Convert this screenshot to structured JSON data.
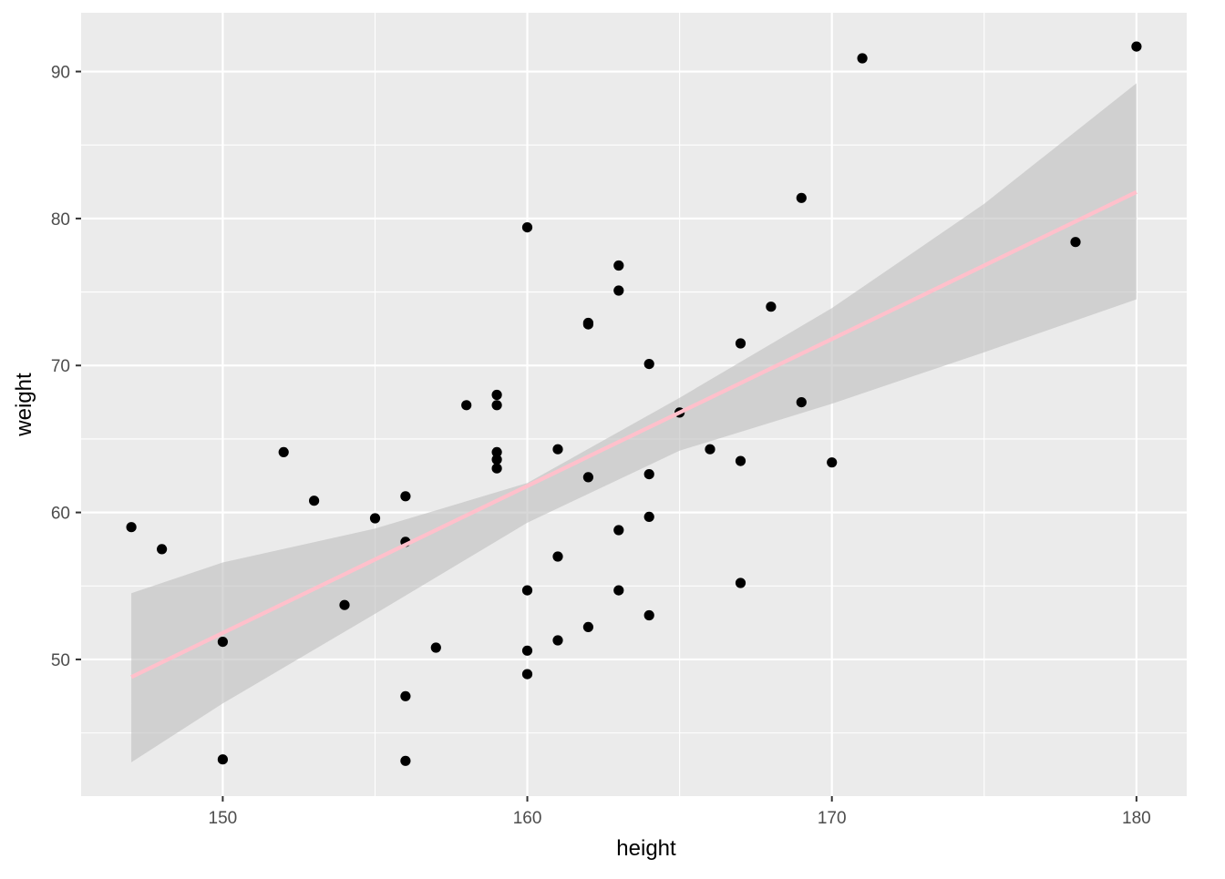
{
  "chart_data": {
    "type": "scatter",
    "xlabel": "height",
    "ylabel": "weight",
    "xlim": [
      145.35,
      181.65
    ],
    "ylim": [
      40.7,
      94.0
    ],
    "x_ticks": [
      150,
      160,
      170,
      180
    ],
    "y_ticks": [
      50,
      60,
      70,
      80,
      90
    ],
    "x_tick_labels": [
      "150",
      "160",
      "170",
      "180"
    ],
    "y_tick_labels": [
      "50",
      "60",
      "70",
      "80",
      "90"
    ],
    "grid": true,
    "legend": "none",
    "series": [
      {
        "points": [
          [
            147,
            59.0
          ],
          [
            148,
            57.5
          ],
          [
            150,
            51.2
          ],
          [
            150,
            43.2
          ],
          [
            152,
            64.1
          ],
          [
            153,
            60.8
          ],
          [
            154,
            53.7
          ],
          [
            155,
            59.6
          ],
          [
            156,
            61.1
          ],
          [
            156,
            58.0
          ],
          [
            156,
            47.5
          ],
          [
            156,
            43.1
          ],
          [
            157,
            50.8
          ],
          [
            158,
            67.3
          ],
          [
            159,
            68.0
          ],
          [
            159,
            67.3
          ],
          [
            159,
            64.1
          ],
          [
            159,
            63.6
          ],
          [
            159,
            63.0
          ],
          [
            160,
            79.4
          ],
          [
            160,
            54.7
          ],
          [
            160,
            50.6
          ],
          [
            160,
            49.0
          ],
          [
            161,
            64.3
          ],
          [
            161,
            57.0
          ],
          [
            161,
            51.3
          ],
          [
            162,
            72.9
          ],
          [
            162,
            72.8
          ],
          [
            162,
            62.4
          ],
          [
            162,
            52.2
          ],
          [
            163,
            76.8
          ],
          [
            163,
            75.1
          ],
          [
            163,
            58.8
          ],
          [
            163,
            54.7
          ],
          [
            164,
            70.1
          ],
          [
            164,
            62.6
          ],
          [
            164,
            59.7
          ],
          [
            164,
            53.0
          ],
          [
            165,
            66.8
          ],
          [
            166,
            64.3
          ],
          [
            167,
            71.5
          ],
          [
            167,
            63.5
          ],
          [
            167,
            55.2
          ],
          [
            168,
            74.0
          ],
          [
            169,
            81.4
          ],
          [
            169,
            67.5
          ],
          [
            170,
            63.4
          ],
          [
            171,
            90.9
          ],
          [
            178,
            78.4
          ],
          [
            180,
            91.7
          ]
        ],
        "color": "#000000"
      }
    ],
    "fit_line": {
      "method": "linear",
      "x": [
        147,
        180
      ],
      "y": [
        48.8,
        81.8
      ],
      "color": "#ffc0cb"
    },
    "confidence_band": {
      "x": [
        147,
        150,
        155,
        160,
        165,
        170,
        175,
        180
      ],
      "lower": [
        43.0,
        47.0,
        53.1,
        59.3,
        64.2,
        67.4,
        70.9,
        74.5
      ],
      "upper": [
        54.5,
        56.6,
        58.9,
        62.0,
        67.8,
        73.9,
        81.0,
        89.2
      ],
      "color": "#bebebe"
    },
    "panel_background": "#ebebeb",
    "grid_color": "#ffffff",
    "point_color": "#000000"
  }
}
